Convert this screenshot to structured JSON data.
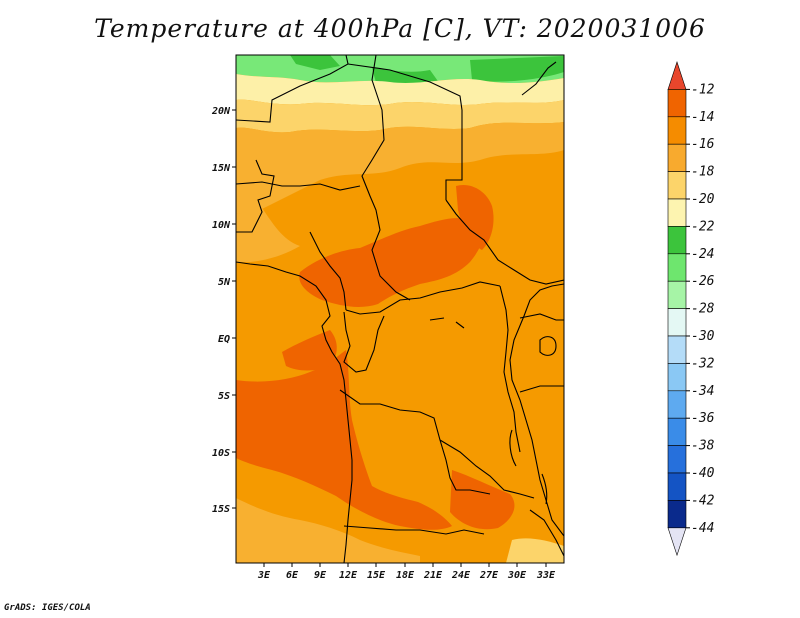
{
  "title": "Temperature at 400hPa [C], VT: 2020031006",
  "footer": "GrADS: IGES/COLA",
  "lat_labels": [
    "20N",
    "15N",
    "10N",
    "5N",
    "EQ",
    "5S",
    "10S",
    "15S"
  ],
  "lon_labels": [
    "3E",
    "6E",
    "9E",
    "12E",
    "15E",
    "18E",
    "21E",
    "24E",
    "27E",
    "30E",
    "33E"
  ],
  "colorbar": {
    "labels": [
      "-12",
      "-14",
      "-16",
      "-18",
      "-20",
      "-22",
      "-24",
      "-26",
      "-28",
      "-30",
      "-32",
      "-34",
      "-36",
      "-38",
      "-40",
      "-42",
      "-44"
    ],
    "colors": [
      "#e8462c",
      "#f06400",
      "#f58c00",
      "#f8aa2e",
      "#fcd46a",
      "#fdf4b0",
      "#3cc43c",
      "#6ee66e",
      "#a6f4a6",
      "#e4f8f4",
      "#b4dcf8",
      "#8ac8f4",
      "#5eaaf0",
      "#3a8ce8",
      "#2670dc",
      "#1454c4",
      "#0a2a8c",
      "#e4e4f4"
    ]
  },
  "colors": {
    "orange_main": "#f59a00",
    "orange_dark": "#ef6400",
    "orange_light": "#f8b030",
    "yellow": "#fcd46a",
    "pale_yellow": "#fdf0a8",
    "green": "#3cc43c",
    "light_green": "#78e878"
  }
}
